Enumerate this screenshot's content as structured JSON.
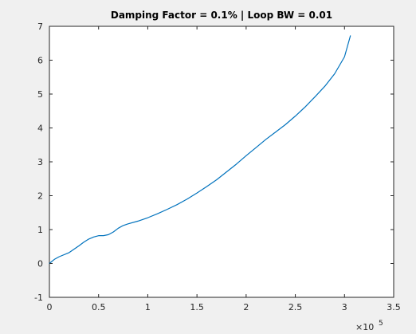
{
  "chart_data": {
    "type": "line",
    "title": "Damping Factor = 0.1% | Loop BW = 0.01",
    "xlabel": "",
    "ylabel": "",
    "xlim": [
      0,
      350000
    ],
    "ylim": [
      -1,
      7
    ],
    "x_ticks": [
      0,
      50000,
      100000,
      150000,
      200000,
      250000,
      300000,
      350000
    ],
    "x_tick_labels": [
      "0",
      "0.5",
      "1",
      "1.5",
      "2",
      "2.5",
      "3",
      "3.5"
    ],
    "x_exponent_base": "×10",
    "x_exponent_power": "5",
    "y_ticks": [
      -1,
      0,
      1,
      2,
      3,
      4,
      5,
      6,
      7
    ],
    "y_tick_labels": [
      "-1",
      "0",
      "1",
      "2",
      "3",
      "4",
      "5",
      "6",
      "7"
    ],
    "grid": false,
    "series": [
      {
        "name": "",
        "color": "#0072bd",
        "x": [
          0,
          5000,
          10000,
          20000,
          30000,
          35000,
          40000,
          45000,
          50000,
          55000,
          60000,
          65000,
          70000,
          75000,
          80000,
          90000,
          100000,
          110000,
          120000,
          130000,
          140000,
          150000,
          160000,
          170000,
          180000,
          190000,
          200000,
          210000,
          220000,
          230000,
          240000,
          250000,
          260000,
          270000,
          280000,
          290000,
          300000,
          306000
        ],
        "values": [
          0.0,
          0.12,
          0.2,
          0.32,
          0.52,
          0.63,
          0.72,
          0.78,
          0.82,
          0.82,
          0.85,
          0.93,
          1.04,
          1.12,
          1.17,
          1.25,
          1.35,
          1.47,
          1.6,
          1.74,
          1.9,
          2.08,
          2.27,
          2.47,
          2.7,
          2.93,
          3.18,
          3.42,
          3.66,
          3.88,
          4.1,
          4.35,
          4.62,
          4.92,
          5.23,
          5.6,
          6.1,
          6.72
        ]
      }
    ]
  }
}
